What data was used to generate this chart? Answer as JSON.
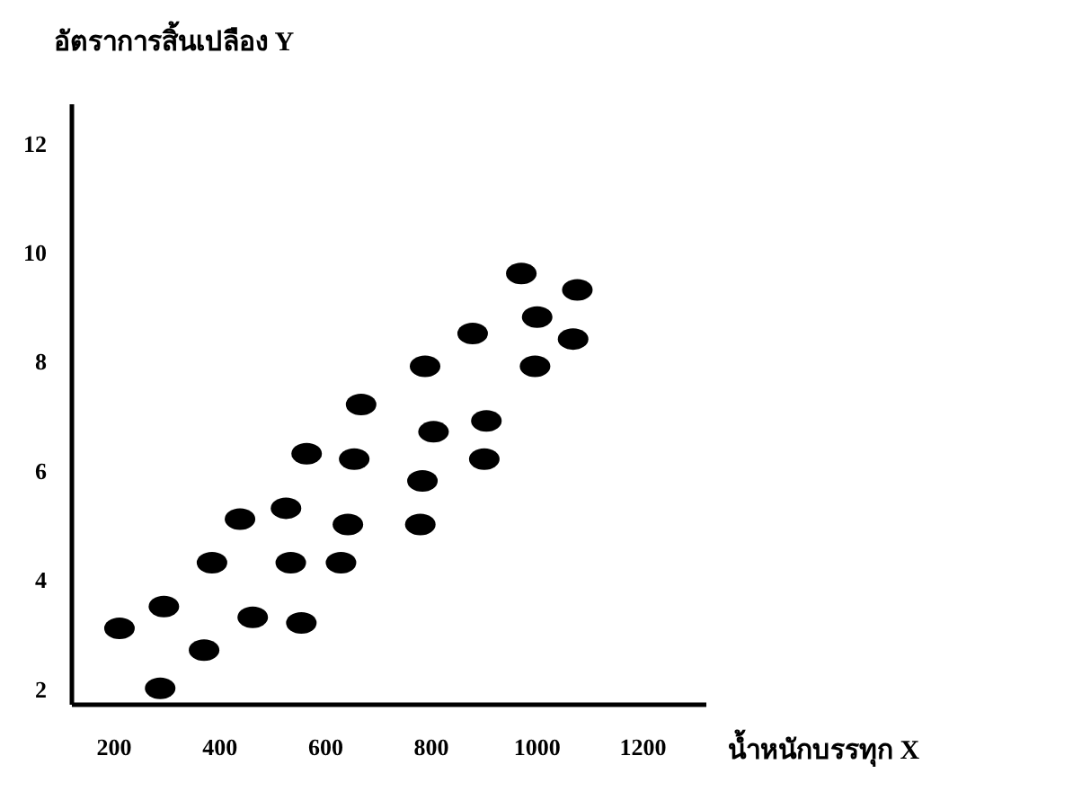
{
  "chart_data": {
    "type": "scatter",
    "xlabel": "น้ำหนักบรรทุก X",
    "ylabel": "อัตราการสิ้นเปลือง Y",
    "x": [
      210,
      287,
      294,
      370,
      385,
      462,
      438,
      525,
      534,
      554,
      564,
      667,
      654,
      642,
      629,
      788,
      804,
      783,
      779,
      878,
      904,
      900,
      970,
      1000,
      996,
      1076,
      1068
    ],
    "values": [
      3.1,
      2.0,
      3.5,
      2.7,
      4.3,
      3.3,
      5.1,
      5.3,
      4.3,
      3.2,
      6.3,
      7.2,
      6.2,
      5.0,
      4.3,
      7.9,
      6.7,
      5.8,
      5.0,
      8.5,
      6.9,
      6.2,
      9.6,
      8.8,
      7.9,
      9.3,
      8.4
    ],
    "color": "#000000",
    "xlim": [
      120,
      1320
    ],
    "ylim": [
      1.7,
      12.7
    ],
    "xticks": [
      200,
      400,
      600,
      800,
      1000,
      1200
    ],
    "yticks": [
      2,
      4,
      6,
      8,
      10,
      12
    ]
  }
}
